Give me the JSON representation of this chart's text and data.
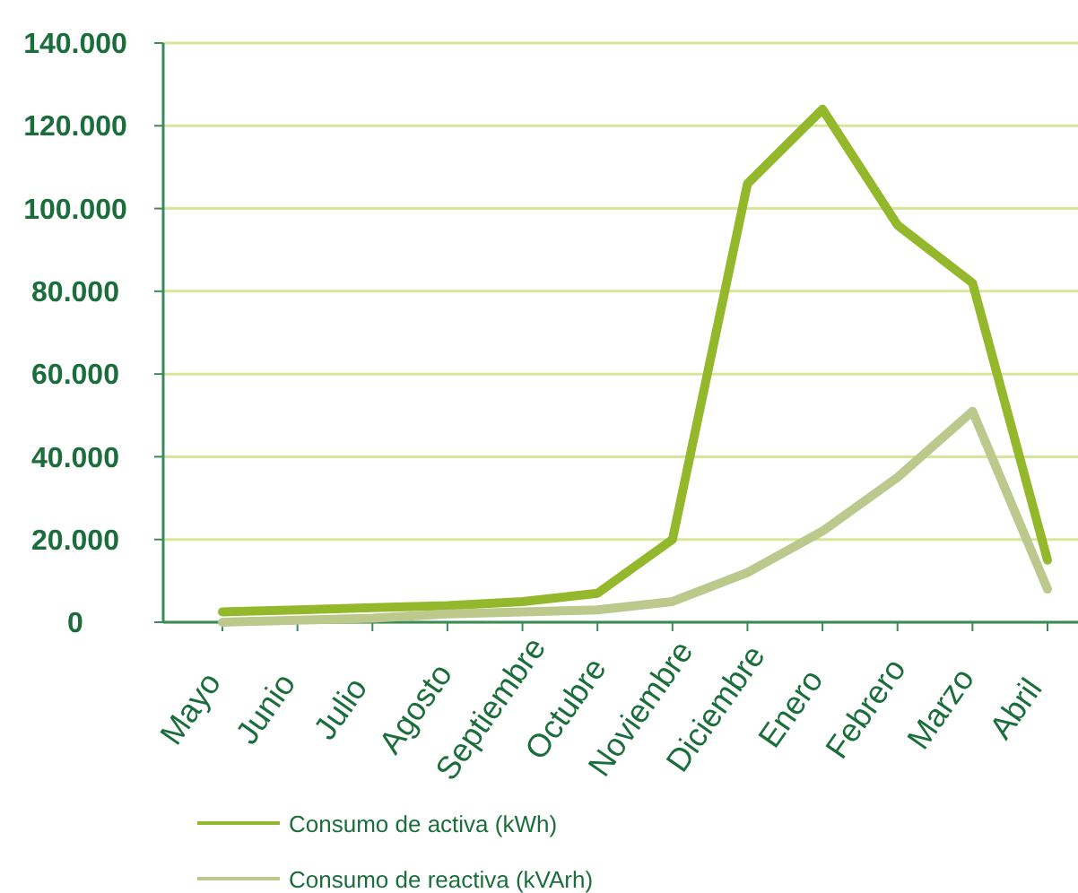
{
  "chart_data": {
    "type": "line",
    "categories": [
      "Mayo",
      "Junio",
      "Julio",
      "Agosto",
      "Septiembre",
      "Octubre",
      "Noviembre",
      "Diciembre",
      "Enero",
      "Febrero",
      "Marzo",
      "Abril"
    ],
    "series": [
      {
        "name": "Consumo de activa (kWh)",
        "color": "#94b82c",
        "values": [
          2500,
          3000,
          3500,
          4000,
          5000,
          7000,
          20000,
          106000,
          124000,
          96000,
          82000,
          15000
        ]
      },
      {
        "name": "Consumo de reactiva (kVArh)",
        "color": "#bcc88c",
        "values": [
          0,
          500,
          1000,
          2000,
          2500,
          3000,
          5000,
          12000,
          22000,
          35000,
          51000,
          8000
        ]
      }
    ],
    "ylim": [
      0,
      140000
    ],
    "yticks": [
      0,
      {
        "value": 20000,
        "label": "20.000"
      },
      {
        "value": 40000,
        "label": "40.000"
      },
      {
        "value": 60000,
        "label": "60.000"
      },
      {
        "value": 80000,
        "label": "80.000"
      },
      {
        "value": 100000,
        "label": "100.000"
      },
      {
        "value": 120000,
        "label": "120.000"
      },
      {
        "value": 140000,
        "label": "140.000"
      }
    ],
    "grid": "y",
    "legend": "bottom",
    "line_style": "solid"
  }
}
